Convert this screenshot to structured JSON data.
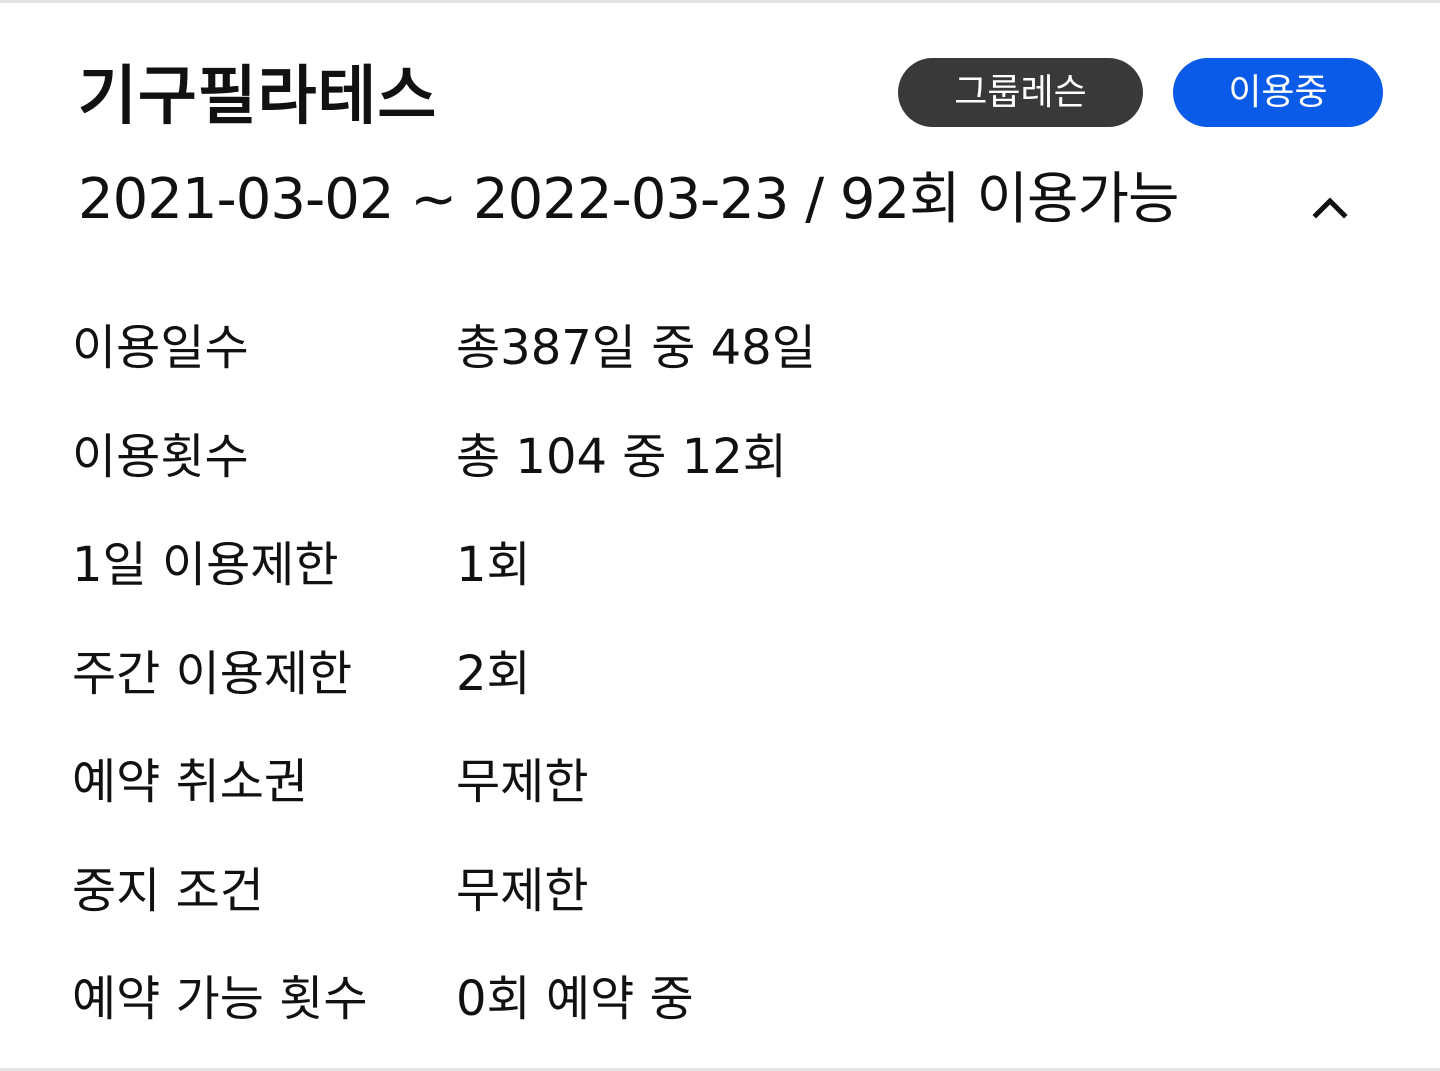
{
  "membership": {
    "title": "기구필라테스",
    "type_badge": "그룹레슨",
    "status_badge": "이용중",
    "period": "2021-03-02 ~ 2022-03-23 /  92회 이용가능",
    "collapse_icon": "chevron-up-icon"
  },
  "details": [
    {
      "label": "이용일수",
      "value": "총387일 중 48일"
    },
    {
      "label": "이용횟수",
      "value": "총 104 중 12회"
    },
    {
      "label": "1일 이용제한",
      "value": "1회"
    },
    {
      "label": "주간 이용제한",
      "value": "2회"
    },
    {
      "label": "예약 취소권",
      "value": "무제한"
    },
    {
      "label": "중지 조건",
      "value": "무제한"
    },
    {
      "label": "예약 가능 횟수",
      "value": "0회 예약 중"
    }
  ],
  "colors": {
    "status_badge_bg": "#0a5be8",
    "type_badge_bg": "#393939",
    "divider": "#e4e4e4"
  }
}
